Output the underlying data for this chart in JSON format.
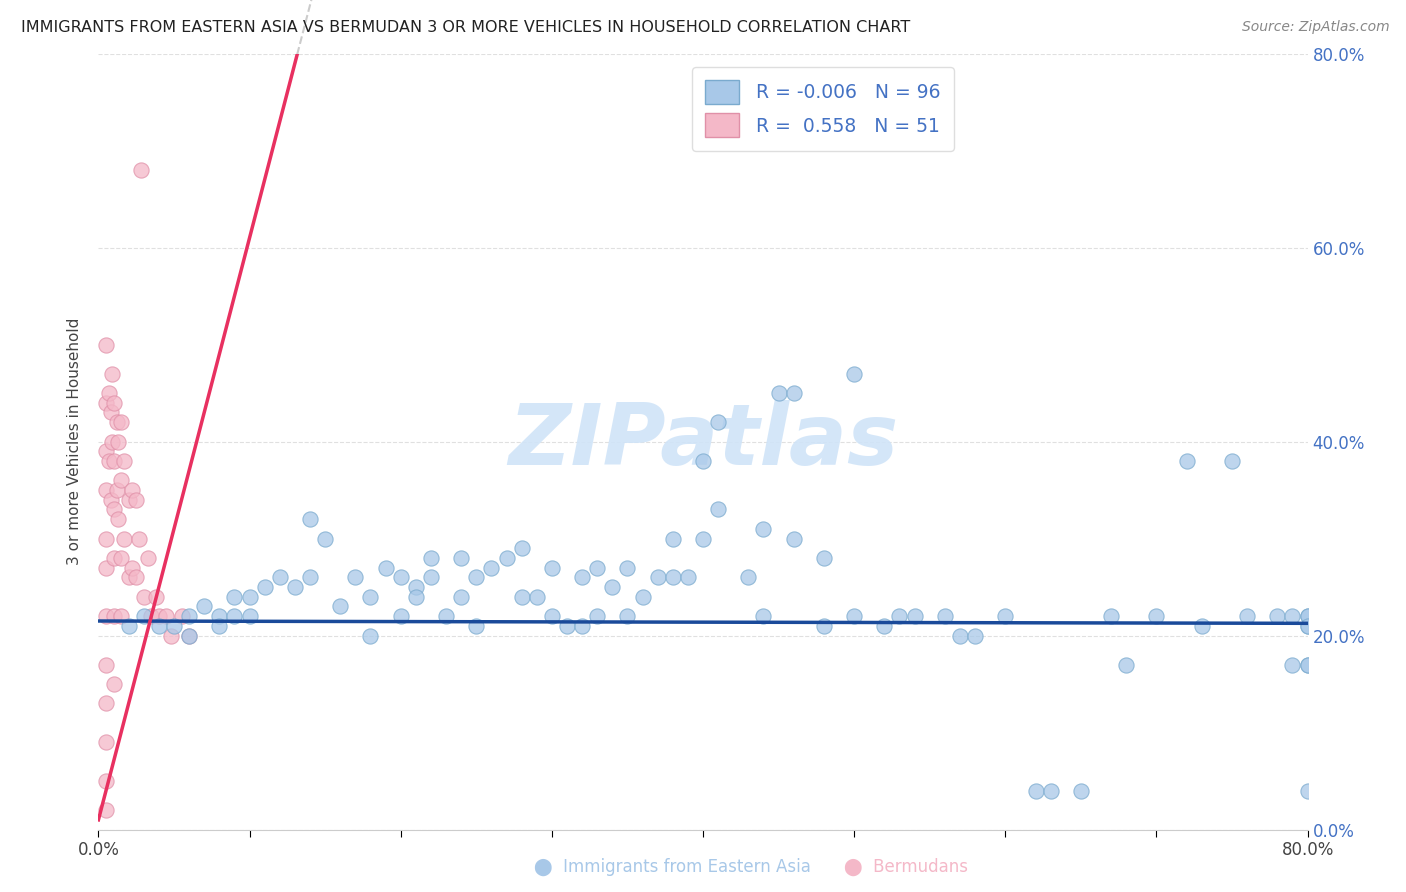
{
  "title": "IMMIGRANTS FROM EASTERN ASIA VS BERMUDAN 3 OR MORE VEHICLES IN HOUSEHOLD CORRELATION CHART",
  "source": "Source: ZipAtlas.com",
  "ylabel": "3 or more Vehicles in Household",
  "legend_label_1": "Immigrants from Eastern Asia",
  "legend_label_2": "Bermudans",
  "R1": -0.006,
  "N1": 96,
  "R2": 0.558,
  "N2": 51,
  "color1_scatter": "#a8c8e8",
  "color1_edge": "#7aaace",
  "color1_line": "#1a4a9a",
  "color2_scatter": "#f4b8c8",
  "color2_edge": "#e090a8",
  "color2_line": "#e83060",
  "dash_color": "#cccccc",
  "xlim": [
    0.0,
    0.8
  ],
  "ylim": [
    0.0,
    0.8
  ],
  "background_color": "#ffffff",
  "grid_color": "#e0e0e0",
  "right_tick_color": "#4472c4",
  "watermark_color": "#d0e4f8",
  "blue_dots_x": [
    0.02,
    0.04,
    0.03,
    0.05,
    0.07,
    0.06,
    0.08,
    0.06,
    0.09,
    0.09,
    0.08,
    0.1,
    0.11,
    0.1,
    0.12,
    0.13,
    0.14,
    0.15,
    0.14,
    0.16,
    0.17,
    0.18,
    0.18,
    0.19,
    0.2,
    0.2,
    0.21,
    0.22,
    0.22,
    0.21,
    0.23,
    0.24,
    0.24,
    0.25,
    0.26,
    0.25,
    0.27,
    0.28,
    0.28,
    0.29,
    0.3,
    0.3,
    0.31,
    0.32,
    0.32,
    0.33,
    0.33,
    0.34,
    0.35,
    0.35,
    0.36,
    0.37,
    0.38,
    0.38,
    0.39,
    0.4,
    0.4,
    0.41,
    0.41,
    0.43,
    0.44,
    0.44,
    0.45,
    0.46,
    0.46,
    0.48,
    0.48,
    0.5,
    0.5,
    0.52,
    0.53,
    0.54,
    0.56,
    0.57,
    0.58,
    0.6,
    0.62,
    0.63,
    0.65,
    0.67,
    0.68,
    0.7,
    0.72,
    0.73,
    0.75,
    0.76,
    0.78,
    0.79,
    0.79,
    0.8,
    0.8,
    0.8,
    0.8,
    0.8,
    0.8,
    0.8
  ],
  "blue_dots_y": [
    0.21,
    0.21,
    0.22,
    0.21,
    0.23,
    0.22,
    0.22,
    0.2,
    0.24,
    0.22,
    0.21,
    0.24,
    0.25,
    0.22,
    0.26,
    0.25,
    0.32,
    0.3,
    0.26,
    0.23,
    0.26,
    0.24,
    0.2,
    0.27,
    0.26,
    0.22,
    0.25,
    0.28,
    0.26,
    0.24,
    0.22,
    0.28,
    0.24,
    0.26,
    0.27,
    0.21,
    0.28,
    0.29,
    0.24,
    0.24,
    0.27,
    0.22,
    0.21,
    0.26,
    0.21,
    0.27,
    0.22,
    0.25,
    0.27,
    0.22,
    0.24,
    0.26,
    0.3,
    0.26,
    0.26,
    0.38,
    0.3,
    0.42,
    0.33,
    0.26,
    0.31,
    0.22,
    0.45,
    0.45,
    0.3,
    0.28,
    0.21,
    0.47,
    0.22,
    0.21,
    0.22,
    0.22,
    0.22,
    0.2,
    0.2,
    0.22,
    0.04,
    0.04,
    0.04,
    0.22,
    0.17,
    0.22,
    0.38,
    0.21,
    0.38,
    0.22,
    0.22,
    0.22,
    0.17,
    0.21,
    0.22,
    0.17,
    0.22,
    0.04,
    0.17,
    0.21
  ],
  "pink_dots_x": [
    0.005,
    0.005,
    0.005,
    0.005,
    0.005,
    0.005,
    0.005,
    0.005,
    0.005,
    0.005,
    0.005,
    0.005,
    0.007,
    0.007,
    0.008,
    0.008,
    0.009,
    0.009,
    0.01,
    0.01,
    0.01,
    0.01,
    0.01,
    0.01,
    0.012,
    0.012,
    0.013,
    0.013,
    0.015,
    0.015,
    0.015,
    0.015,
    0.017,
    0.017,
    0.02,
    0.02,
    0.022,
    0.022,
    0.025,
    0.025,
    0.027,
    0.028,
    0.03,
    0.033,
    0.035,
    0.038,
    0.04,
    0.045,
    0.048,
    0.055,
    0.06
  ],
  "pink_dots_y": [
    0.5,
    0.44,
    0.39,
    0.35,
    0.3,
    0.27,
    0.22,
    0.17,
    0.13,
    0.09,
    0.05,
    0.02,
    0.45,
    0.38,
    0.43,
    0.34,
    0.47,
    0.4,
    0.44,
    0.38,
    0.33,
    0.28,
    0.22,
    0.15,
    0.42,
    0.35,
    0.4,
    0.32,
    0.42,
    0.36,
    0.28,
    0.22,
    0.38,
    0.3,
    0.34,
    0.26,
    0.35,
    0.27,
    0.34,
    0.26,
    0.3,
    0.68,
    0.24,
    0.28,
    0.22,
    0.24,
    0.22,
    0.22,
    0.2,
    0.22,
    0.2
  ],
  "blue_line_y_intercept": 0.215,
  "blue_line_slope": -0.003,
  "pink_line_intercept": 0.01,
  "pink_line_slope": 6.0
}
